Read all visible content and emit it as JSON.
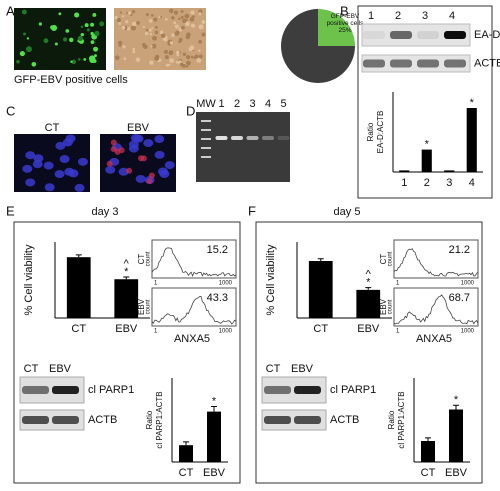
{
  "panels": {
    "A": {
      "label": "A",
      "caption": "GFP-EBV positive cells"
    },
    "B": {
      "label": "B",
      "lanes": [
        "1",
        "2",
        "3",
        "4"
      ],
      "blots": [
        "EA-D",
        "ACTB"
      ]
    },
    "C": {
      "label": "C",
      "conditions": [
        "CT",
        "EBV"
      ]
    },
    "D": {
      "label": "D",
      "lanes": [
        "MW",
        "1",
        "2",
        "3",
        "4",
        "5"
      ]
    },
    "E": {
      "label": "E",
      "day": "day 3",
      "histograms": [
        {
          "condition": "CT",
          "axis_label": "count",
          "value": 15.2
        },
        {
          "condition": "EBV",
          "axis_label": "count",
          "value": 43.3
        }
      ],
      "hist_ticks": [
        1,
        1000
      ],
      "hist_label": "ANXA5",
      "blot_conditions": [
        "CT",
        "EBV"
      ],
      "blots": [
        "cl PARP1",
        "ACTB"
      ]
    },
    "F": {
      "label": "F",
      "day": "day 5",
      "histograms": [
        {
          "condition": "CT",
          "axis_label": "count",
          "value": 21.2
        },
        {
          "condition": "EBV",
          "axis_label": "count",
          "value": 68.7
        }
      ],
      "hist_ticks": [
        1,
        1000
      ],
      "hist_label": "ANXA5",
      "blot_conditions": [
        "CT",
        "EBV"
      ],
      "blots": [
        "cl PARP1",
        "ACTB"
      ]
    }
  },
  "chart_data": [
    {
      "type": "pie",
      "categories": [
        "GFP-EBV positive cells",
        null
      ],
      "values": [
        25,
        75
      ],
      "value_labels": [
        "25%",
        null
      ],
      "colors": [
        "#6cc24a",
        "#3d3d3d"
      ]
    },
    {
      "type": "bar",
      "ylabel": [
        "Ratio",
        "EA-D:ACTB"
      ],
      "categories": [
        "1",
        "2",
        "3",
        "4"
      ],
      "values": [
        0.02,
        0.28,
        0.02,
        0.8
      ],
      "ylim": [
        0,
        1
      ],
      "color": "#000000",
      "annotations": [
        {
          "text": "*",
          "category": "2"
        },
        {
          "text": "*",
          "category": "4"
        }
      ]
    },
    {
      "type": "bar",
      "ylabel": [
        "% Cell viability"
      ],
      "categories": [
        "CT",
        "EBV"
      ],
      "values": [
        80,
        51
      ],
      "errors": [
        3,
        3
      ],
      "ylim": [
        0,
        100
      ],
      "color": "#000000",
      "annotations": [
        {
          "text": "*",
          "category": "EBV"
        },
        {
          "text": "^",
          "category": "EBV"
        }
      ]
    },
    {
      "type": "bar",
      "ylabel": [
        "Ratio",
        "cl PARP1:ACTB"
      ],
      "categories": [
        "CT",
        "EBV"
      ],
      "values": [
        0.1,
        0.3
      ],
      "errors": [
        0.02,
        0.03
      ],
      "ylim": [
        0,
        0.5
      ],
      "color": "#000000",
      "annotations": [
        {
          "text": "*",
          "category": "EBV"
        }
      ]
    },
    {
      "type": "bar",
      "ylabel": [
        "% Cell viability"
      ],
      "categories": [
        "CT",
        "EBV"
      ],
      "values": [
        75,
        37
      ],
      "errors": [
        3,
        3
      ],
      "ylim": [
        0,
        100
      ],
      "color": "#000000",
      "annotations": [
        {
          "text": "*",
          "category": "EBV"
        },
        {
          "text": "^",
          "category": "EBV"
        }
      ]
    },
    {
      "type": "bar",
      "ylabel": [
        "Ratio",
        "cl PARP1:ACTB"
      ],
      "categories": [
        "CT",
        "EBV"
      ],
      "values": [
        0.2,
        0.5
      ],
      "errors": [
        0.03,
        0.04
      ],
      "ylim": [
        0,
        0.8
      ],
      "color": "#000000",
      "annotations": [
        {
          "text": "*",
          "category": "EBV"
        }
      ]
    }
  ]
}
